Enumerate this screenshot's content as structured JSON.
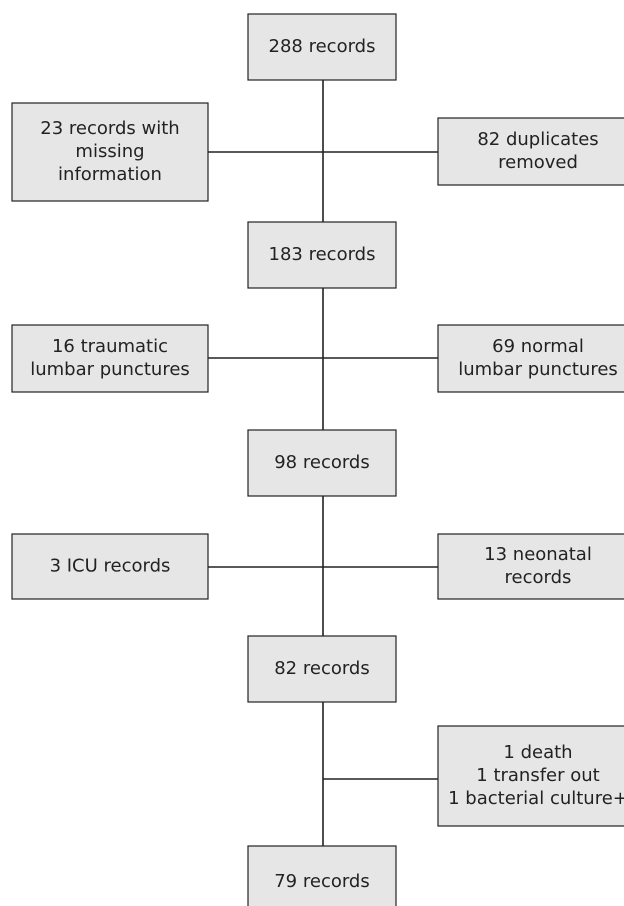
{
  "nodes": [
    {
      "lines": [
        "288 records"
      ]
    },
    {
      "lines": [
        "23 records with",
        "missing",
        "information"
      ]
    },
    {
      "lines": [
        "82 duplicates",
        "removed"
      ]
    },
    {
      "lines": [
        "183 records"
      ]
    },
    {
      "lines": [
        "16 traumatic",
        "lumbar punctures"
      ]
    },
    {
      "lines": [
        "69 normal",
        "lumbar punctures"
      ]
    },
    {
      "lines": [
        "98 records"
      ]
    },
    {
      "lines": [
        "3 ICU records"
      ]
    },
    {
      "lines": [
        "13 neonatal",
        "records"
      ]
    },
    {
      "lines": [
        "82 records"
      ]
    },
    {
      "lines": [
        "1 death",
        "1 transfer out",
        "1 bacterial culture+"
      ]
    },
    {
      "lines": [
        "79 records"
      ]
    }
  ]
}
